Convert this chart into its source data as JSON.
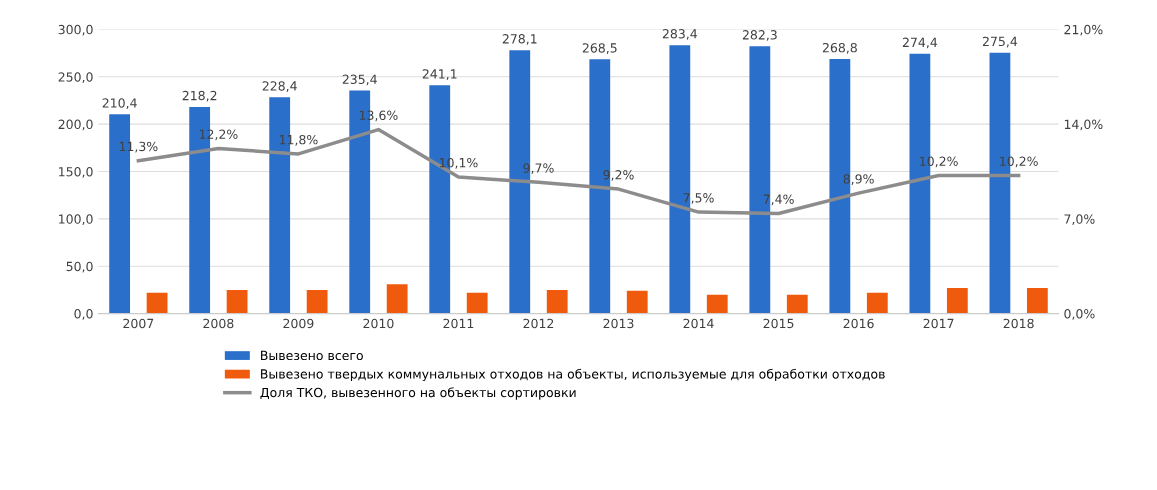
{
  "chart_data": {
    "type": "bar",
    "categories": [
      "2007",
      "2008",
      "2009",
      "2010",
      "2011",
      "2012",
      "2013",
      "2014",
      "2015",
      "2016",
      "2017",
      "2018"
    ],
    "series": [
      {
        "name": "Вывезено всего",
        "color": "#2a6fc9",
        "values": [
          210.4,
          218.2,
          228.4,
          235.4,
          241.1,
          278.1,
          268.5,
          283.4,
          282.3,
          268.8,
          274.4,
          275.4
        ],
        "value_labels": [
          "210,4",
          "218,2",
          "228,4",
          "235,4",
          "241,1",
          "278,1",
          "268,5",
          "283,4",
          "282,3",
          "268,8",
          "274,4",
          "275,4"
        ]
      },
      {
        "name": "Вывезено твердых коммунальных отходов на объекты, используемые для обработки отходов",
        "color": "#ef5a0c",
        "values": [
          22,
          25,
          25,
          31,
          22,
          25,
          24,
          20,
          20,
          22,
          27,
          27
        ]
      },
      {
        "name": "Доля ТКО, вывезенного на объекты сортировки",
        "type": "line",
        "axis": "y2",
        "color": "#8c8c8c",
        "values": [
          11.3,
          12.2,
          11.8,
          13.6,
          10.1,
          9.7,
          9.2,
          7.5,
          7.4,
          8.9,
          10.2,
          10.2
        ],
        "value_labels": [
          "11,3%",
          "12,2%",
          "11,8%",
          "13,6%",
          "10,1%",
          "9,7%",
          "9,2%",
          "7,5%",
          "7,4%",
          "8,9%",
          "10,2%",
          "10,2%"
        ]
      }
    ],
    "ylim": [
      0,
      300
    ],
    "yticks": [
      {
        "value": 0,
        "label": "0,0"
      },
      {
        "value": 50,
        "label": "50,0"
      },
      {
        "value": 100,
        "label": "100,0"
      },
      {
        "value": 150,
        "label": "150,0"
      },
      {
        "value": 200,
        "label": "200,0"
      },
      {
        "value": 250,
        "label": "250,0"
      },
      {
        "value": 300,
        "label": "300,0"
      }
    ],
    "y2lim": [
      0,
      21
    ],
    "y2ticks": [
      {
        "value": 0,
        "label": "0,0%"
      },
      {
        "value": 7,
        "label": "7,0%"
      },
      {
        "value": 14,
        "label": "14,0%"
      },
      {
        "value": 21,
        "label": "21,0%"
      }
    ],
    "grid": "y",
    "legend": "bottom",
    "marker": "none",
    "line_style": "solid"
  }
}
